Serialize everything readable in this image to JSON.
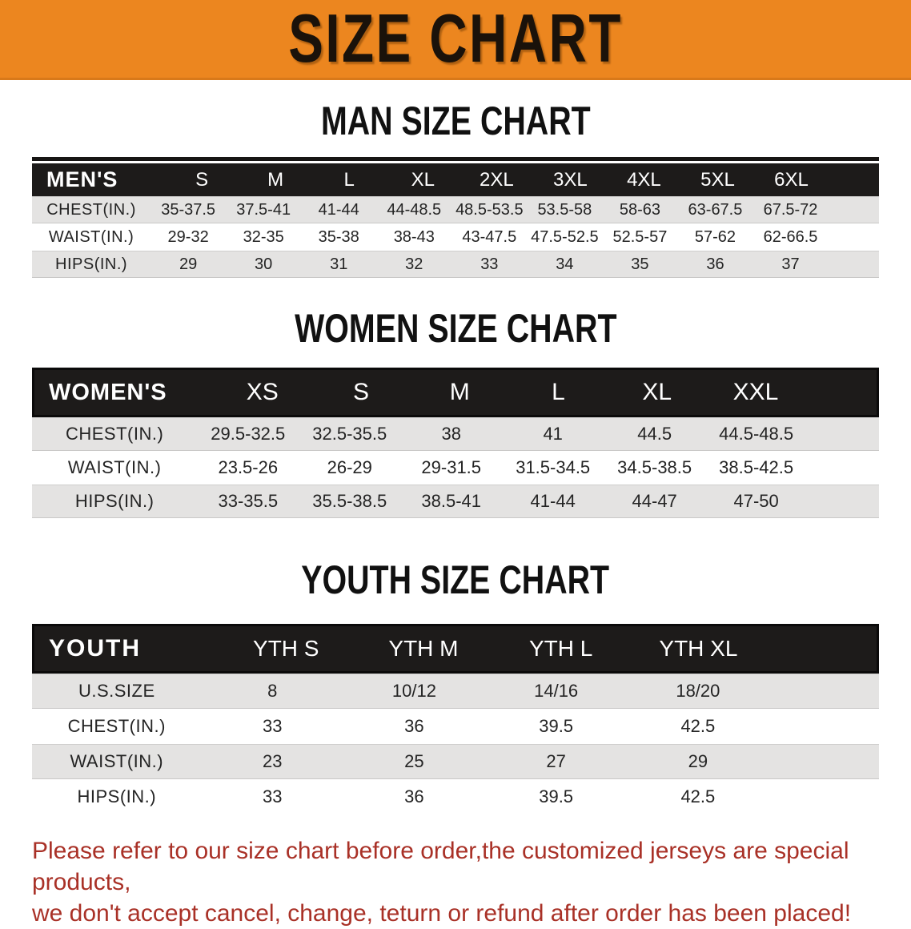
{
  "banner": {
    "title": "SIZE CHART"
  },
  "colors": {
    "banner_orange": "#EC861F",
    "header_band_black": "#1D1B1A",
    "row_gray": "#E4E3E2",
    "notice_red": "#A93127"
  },
  "sections": [
    {
      "heading": "MAN SIZE CHART",
      "label": "MEN'S",
      "sizes": [
        "S",
        "M",
        "L",
        "XL",
        "2XL",
        "3XL",
        "4XL",
        "5XL",
        "6XL"
      ],
      "rows": [
        {
          "label": "CHEST(IN.)",
          "values": [
            "35-37.5",
            "37.5-41",
            "41-44",
            "44-48.5",
            "48.5-53.5",
            "53.5-58",
            "58-63",
            "63-67.5",
            "67.5-72"
          ]
        },
        {
          "label": "WAIST(IN.)",
          "values": [
            "29-32",
            "32-35",
            "35-38",
            "38-43",
            "43-47.5",
            "47.5-52.5",
            "52.5-57",
            "57-62",
            "62-66.5"
          ]
        },
        {
          "label": "HIPS(IN.)",
          "values": [
            "29",
            "30",
            "31",
            "32",
            "33",
            "34",
            "35",
            "36",
            "37"
          ]
        }
      ]
    },
    {
      "heading": "WOMEN SIZE CHART",
      "label": "WOMEN'S",
      "sizes": [
        "XS",
        "S",
        "M",
        "L",
        "XL",
        "XXL"
      ],
      "rows": [
        {
          "label": "CHEST(IN.)",
          "values": [
            "29.5-32.5",
            "32.5-35.5",
            "38",
            "41",
            "44.5",
            "44.5-48.5"
          ]
        },
        {
          "label": "WAIST(IN.)",
          "values": [
            "23.5-26",
            "26-29",
            "29-31.5",
            "31.5-34.5",
            "34.5-38.5",
            "38.5-42.5"
          ]
        },
        {
          "label": "HIPS(IN.)",
          "values": [
            "33-35.5",
            "35.5-38.5",
            "38.5-41",
            "41-44",
            "44-47",
            "47-50"
          ]
        }
      ]
    },
    {
      "heading": "YOUTH SIZE CHART",
      "label": "YOUTH",
      "sizes": [
        "YTH S",
        "YTH M",
        "YTH L",
        "YTH XL"
      ],
      "rows": [
        {
          "label": "U.S.SIZE",
          "values": [
            "8",
            "10/12",
            "14/16",
            "18/20"
          ]
        },
        {
          "label": "CHEST(IN.)",
          "values": [
            "33",
            "36",
            "39.5",
            "42.5"
          ]
        },
        {
          "label": "WAIST(IN.)",
          "values": [
            "23",
            "25",
            "27",
            "29"
          ]
        },
        {
          "label": "HIPS(IN.)",
          "values": [
            "33",
            "36",
            "39.5",
            "42.5"
          ]
        }
      ]
    }
  ],
  "footer": {
    "line1": "Please refer to our size chart before order,the customized jerseys are special products,",
    "line2": "we don't accept cancel, change, teturn or refund after order has been placed!"
  }
}
